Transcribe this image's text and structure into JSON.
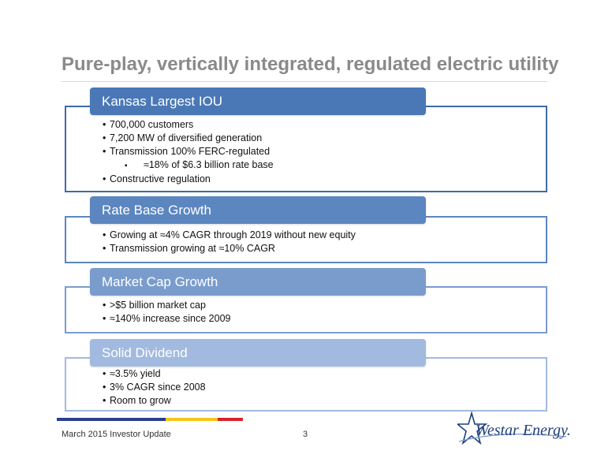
{
  "slide": {
    "title": "Pure-play, vertically integrated, regulated electric utility"
  },
  "sections": [
    {
      "header": "Kansas Largest IOU",
      "header_color": "#4a78b6",
      "border_color": "#3f6aa8",
      "bullets": [
        {
          "marker": "•",
          "text": "700,000 customers"
        },
        {
          "marker": "•",
          "text": "7,200 MW of diversified generation"
        },
        {
          "marker": "•",
          "text": "Transmission 100% FERC-regulated"
        },
        {
          "marker": "▪",
          "text": "≈18% of $6.3 billion rate base"
        },
        {
          "marker": "•",
          "text": "Constructive regulation"
        }
      ]
    },
    {
      "header": "Rate Base Growth",
      "header_color": "#5c86c0",
      "border_color": "#5c86c0",
      "bullets": [
        {
          "marker": "•",
          "text": "Growing at ≈4% CAGR through 2019 without new equity"
        },
        {
          "marker": "•",
          "text": "Transmission growing at ≈10% CAGR"
        }
      ]
    },
    {
      "header": "Market Cap Growth",
      "header_color": "#7a9ccd",
      "border_color": "#7a9ccd",
      "bullets": [
        {
          "marker": "•",
          "text": ">$5 billion market cap"
        },
        {
          "marker": "•",
          "text": "≈140% increase since 2009"
        }
      ]
    },
    {
      "header": "Solid Dividend",
      "header_color": "#a2badf",
      "border_color": "#a2badf",
      "bullets": [
        {
          "marker": "•",
          "text": "≈3.5% yield"
        },
        {
          "marker": "•",
          "text": "3% CAGR since 2008"
        },
        {
          "marker": "•",
          "text": "Room to grow"
        }
      ]
    }
  ],
  "footer": {
    "left_text": "March 2015 Investor Update",
    "page_number": "3",
    "logo_text": "Westar Energy.",
    "bar_colors": [
      "#2c3f8f",
      "#f5c518",
      "#d8232a"
    ]
  }
}
